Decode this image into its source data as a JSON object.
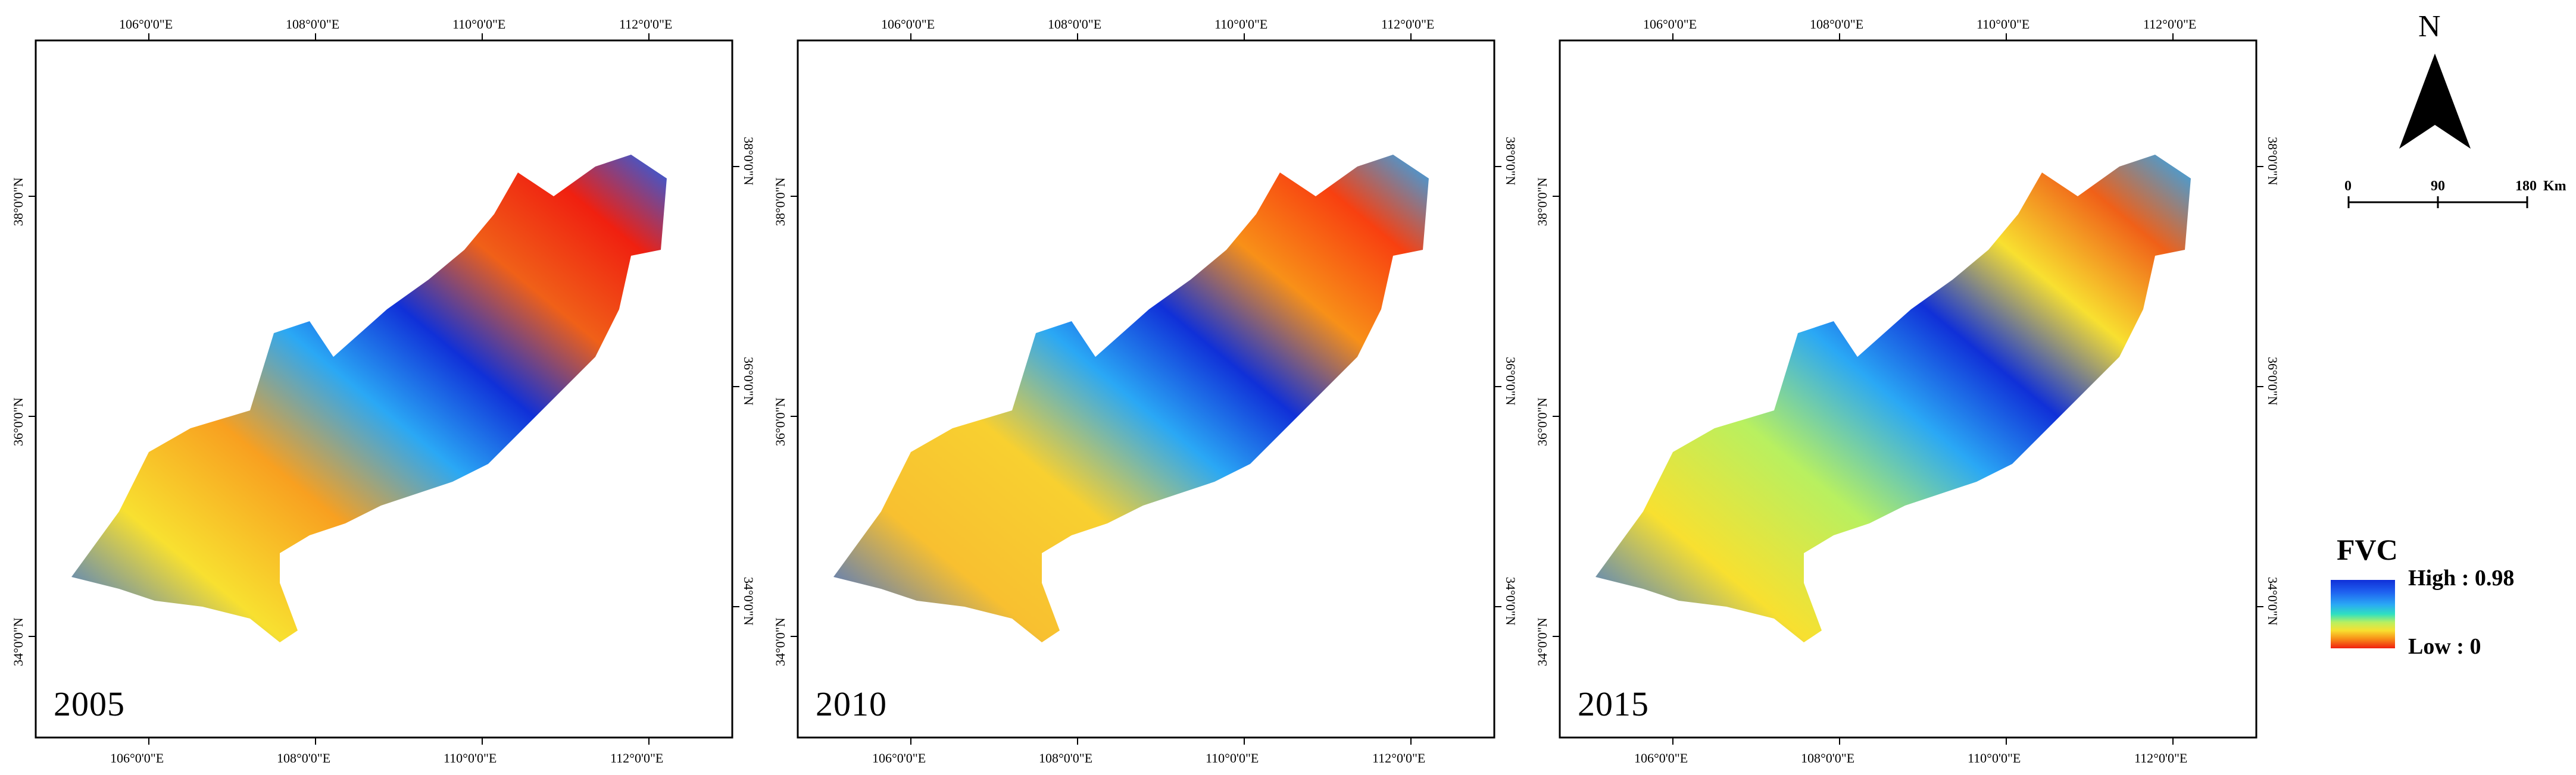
{
  "panels": [
    {
      "year": "2005",
      "top_ticks": [
        "106°0'0\"E",
        "108°0'0\"E",
        "110°0'0\"E",
        "112°0'0\"E"
      ],
      "bottom_ticks": [
        "106°0'0\"E",
        "108°0'0\"E",
        "110°0'0\"E",
        "112°0'0\"E"
      ],
      "left_ticks": [
        "38°0'0\"N",
        "36°0'0\"N",
        "34°0'0\"N"
      ],
      "right_ticks": [
        "38°0'0\"N",
        "36°0'0\"N",
        "34°0'0\"N"
      ]
    },
    {
      "year": "2010",
      "top_ticks": [
        "106°0'0\"E",
        "108°0'0\"E",
        "110°0'0\"E",
        "112°0'0\"E"
      ],
      "bottom_ticks": [
        "106°0'0\"E",
        "108°0'0\"E",
        "110°0'0\"E",
        "112°0'0\"E"
      ],
      "left_ticks": [
        "38°0'0\"N",
        "36°0'0\"N",
        "34°0'0\"N"
      ],
      "right_ticks": [
        "38°0'0\"N",
        "36°0'0\"N",
        "34°0'0\"N"
      ]
    },
    {
      "year": "2015",
      "top_ticks": [
        "106°0'0\"E",
        "108°0'0\"E",
        "110°0'0\"E",
        "112°0'0\"E"
      ],
      "bottom_ticks": [
        "106°0'0\"E",
        "108°0'0\"E",
        "110°0'0\"E",
        "112°0'0\"E"
      ],
      "left_ticks": [
        "38°0'0\"N",
        "36°0'0\"N",
        "34°0'0\"N"
      ],
      "right_ticks": [
        "38°0'0\"N",
        "36°0'0\"N",
        "34°0'0\"N"
      ]
    }
  ],
  "north_arrow": {
    "letter": "N",
    "icon": "north-arrow-icon"
  },
  "scale_bar": {
    "labels": [
      "0",
      "90",
      "180"
    ],
    "unit": "Km"
  },
  "legend": {
    "title": "FVC",
    "high": "High : 0.98",
    "low": "Low : 0",
    "colors": [
      "#1030d8",
      "#1f62f0",
      "#2aa8f5",
      "#2fe0c0",
      "#b8f060",
      "#f8e030",
      "#f89018",
      "#f02010"
    ]
  }
}
